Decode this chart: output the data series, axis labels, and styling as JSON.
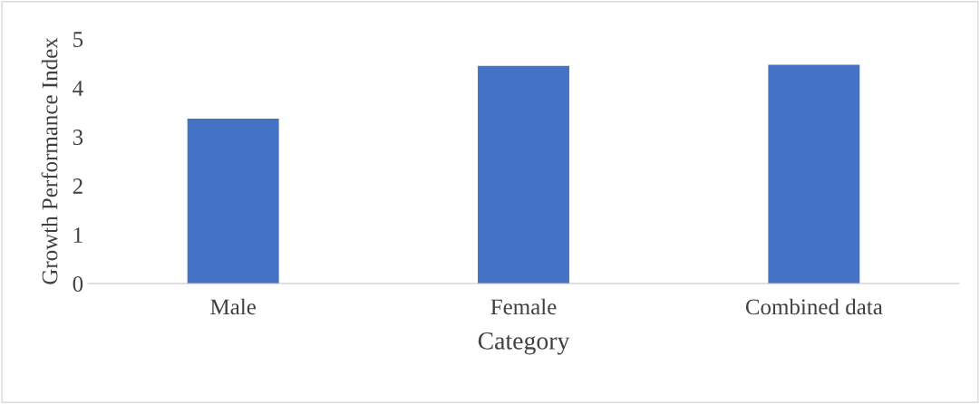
{
  "chart_data": {
    "type": "bar",
    "xlabel": "Category",
    "ylabel": "Growth Performance Index",
    "categories": [
      "Male",
      "Female",
      "Combined data"
    ],
    "values": [
      3.37,
      4.45,
      4.47
    ],
    "color": "#4472c4",
    "ylim": [
      0,
      5
    ],
    "yticks": [
      0,
      1,
      2,
      3,
      4,
      5
    ],
    "grid": false
  }
}
